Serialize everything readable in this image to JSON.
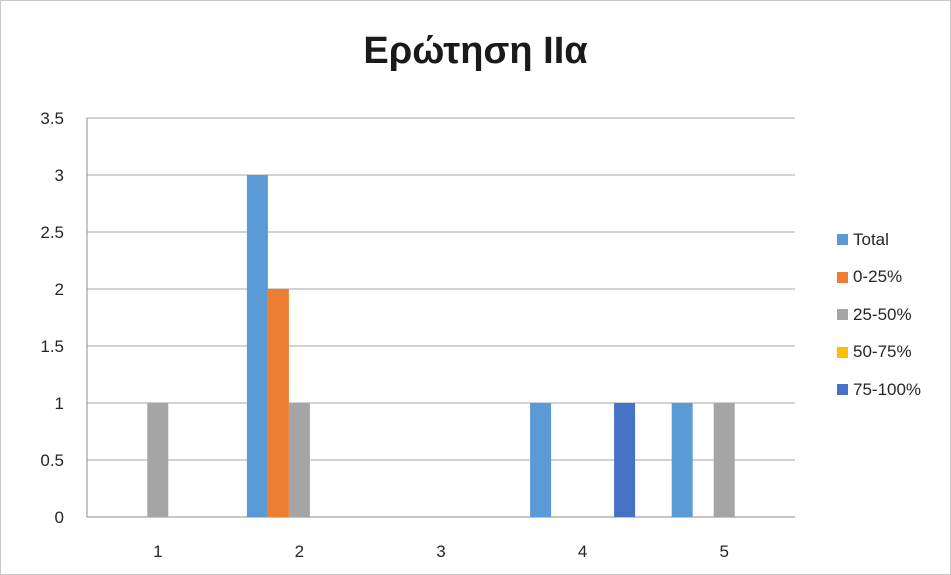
{
  "chart_data": {
    "type": "bar",
    "title": "Ερώτηση ΙΙα",
    "categories": [
      "1",
      "2",
      "3",
      "4",
      "5"
    ],
    "series": [
      {
        "name": "Total",
        "color": "#5b9bd5",
        "values": [
          0,
          3,
          0,
          1,
          1
        ]
      },
      {
        "name": "0-25%",
        "color": "#ed7d31",
        "values": [
          0,
          2,
          0,
          0,
          0
        ]
      },
      {
        "name": "25-50%",
        "color": "#a5a5a5",
        "values": [
          1,
          1,
          0,
          0,
          1
        ]
      },
      {
        "name": "50-75%",
        "color": "#ffc000",
        "values": [
          0,
          0,
          0,
          0,
          0
        ]
      },
      {
        "name": "75-100%",
        "color": "#4472c4",
        "values": [
          0,
          0,
          0,
          1,
          0
        ]
      }
    ],
    "ylim": [
      0,
      3.5
    ],
    "yticks": [
      "0",
      "0.5",
      "1",
      "1.5",
      "2",
      "2.5",
      "3",
      "3.5"
    ],
    "grid": true,
    "legend_position": "right"
  }
}
